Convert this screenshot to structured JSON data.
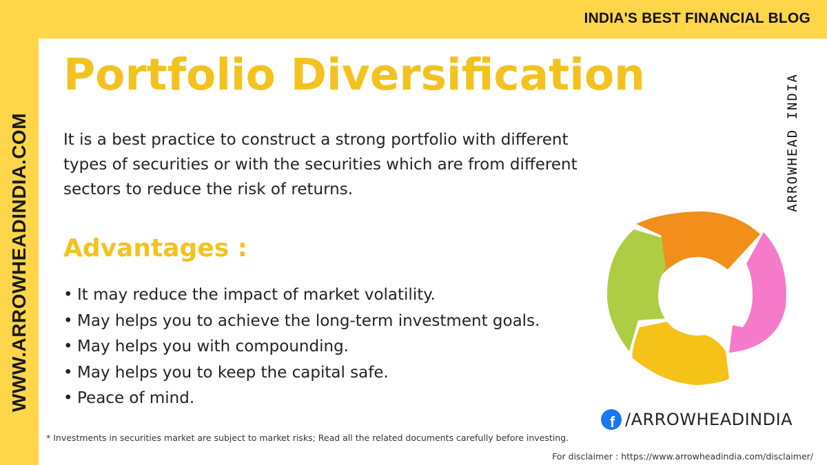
{
  "header": {
    "tagline": "INDIA'S BEST FINANCIAL BLOG"
  },
  "sidebar": {
    "website": "WWW.ARROWHEADINDIA.COM"
  },
  "brand_vertical": "ARROWHEAD INDIA",
  "main": {
    "title": "Portfolio Diversification",
    "intro": "It is a best practice to construct a strong portfolio with different types of securities or with the securities which are from different sectors to reduce the risk of returns.",
    "advantages_heading": "Advantages :",
    "bullet_symbol": "•",
    "advantages": [
      "It may reduce the impact of market volatility.",
      "May helps you to achieve the long-term investment goals.",
      "May helps you with compounding.",
      "May helps you to keep the capital safe.",
      "Peace of mind."
    ]
  },
  "graphic": {
    "icon": "cycle-diagram-icon",
    "segment_colors": [
      "#f28e1a",
      "#f57ac9",
      "#f5c21a",
      "#afcd44"
    ]
  },
  "social": {
    "icon": "facebook-icon",
    "handle": "/ARROWHEADINDIA",
    "icon_letter": "f",
    "icon_color": "#1877f2"
  },
  "footer": {
    "risk_note": "* Investments in securities market are subject to market risks; Read all the related documents carefully before investing.",
    "disclaimer": "For disclaimer : https://www.arrowheadindia.com/disclaimer/"
  },
  "colors": {
    "accent_yellow": "#f4c21f",
    "border_yellow": "#ffd54a",
    "text": "#222222"
  }
}
